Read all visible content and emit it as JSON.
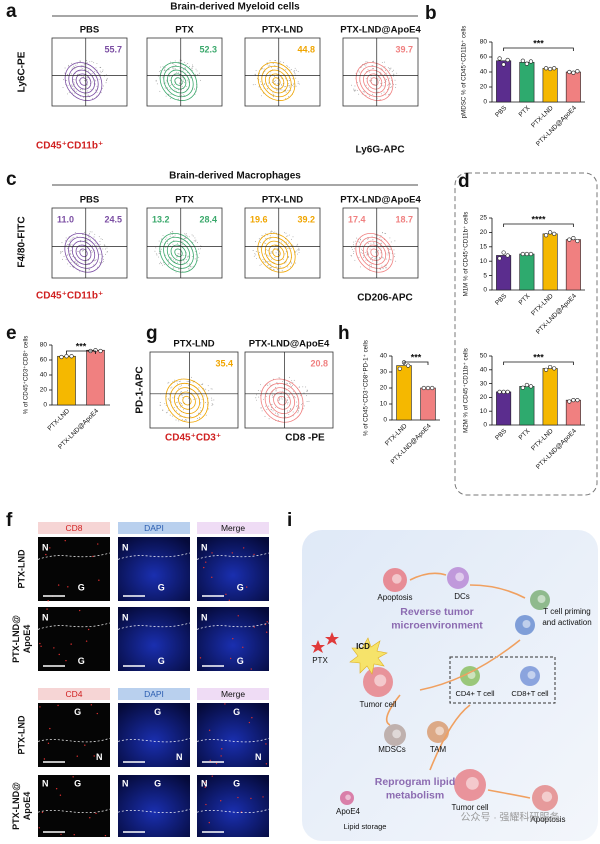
{
  "panel_a": {
    "label": "a",
    "title": "Brain-derived Myeloid cells",
    "y_axis": "Ly6C-PE",
    "gate": "CD45⁺CD11b⁺",
    "x_axis": "Ly6G-APC",
    "groups": [
      {
        "name": "PBS",
        "color": "#7b4ea3",
        "values": [
          "55.7"
        ]
      },
      {
        "name": "PTX",
        "color": "#3aa86b",
        "values": [
          "52.3"
        ]
      },
      {
        "name": "PTX-LND",
        "color": "#f0a500",
        "values": [
          "44.8"
        ]
      },
      {
        "name": "PTX-LND@ApoE4",
        "color": "#f08080",
        "values": [
          "39.7"
        ]
      }
    ]
  },
  "panel_c": {
    "label": "c",
    "title": "Brain-derived Macrophages",
    "y_axis": "F4/80-FITC",
    "gate": "CD45⁺CD11b⁺",
    "x_axis": "CD206-APC",
    "groups": [
      {
        "name": "PBS",
        "color": "#7b4ea3",
        "values": [
          "11.0",
          "24.5"
        ]
      },
      {
        "name": "PTX",
        "color": "#3aa86b",
        "values": [
          "13.2",
          "28.4"
        ]
      },
      {
        "name": "PTX-LND",
        "color": "#f0a500",
        "values": [
          "19.6",
          "39.2"
        ]
      },
      {
        "name": "PTX-LND@ApoE4",
        "color": "#f08080",
        "values": [
          "17.4",
          "18.7"
        ]
      }
    ]
  },
  "panel_g": {
    "label": "g",
    "y_axis": "PD-1-APC",
    "gate": "CD45⁺CD3⁺",
    "x_axis": "CD8 -PE",
    "groups": [
      {
        "name": "PTX-LND",
        "color": "#f0a500",
        "values": [
          "35.4"
        ]
      },
      {
        "name": "PTX-LND@ApoE4",
        "color": "#f08080",
        "values": [
          "20.8"
        ]
      }
    ]
  },
  "chart_data": [
    {
      "type": "bar",
      "label": "b",
      "y_label": "pMDSC % of CD45⁺CD11b⁺ cells",
      "categories": [
        "PBS",
        "PTX",
        "PTX-LND",
        "PTX-LND@ApoE4"
      ],
      "values": [
        55,
        53,
        45,
        40
      ],
      "points": [
        [
          58,
          50,
          56
        ],
        [
          55,
          51,
          54
        ],
        [
          45,
          44,
          45
        ],
        [
          40,
          39,
          41
        ]
      ],
      "colors": [
        "#5b2d8e",
        "#2eaa6e",
        "#f5b800",
        "#f08080"
      ],
      "ylim": [
        0,
        80
      ],
      "yticks": [
        0,
        20,
        40,
        60,
        80
      ],
      "significance": "***"
    },
    {
      "type": "bar",
      "label": "d",
      "y_label": "M1M % of CD45⁺CD11b⁺ cells",
      "categories": [
        "PBS",
        "PTX",
        "PTX-LND",
        "PTX-LND@ApoE4"
      ],
      "values": [
        12,
        12.5,
        19.5,
        17.5
      ],
      "points": [
        [
          11,
          13,
          12
        ],
        [
          12.5,
          12.5,
          12.5
        ],
        [
          19,
          20,
          19.5
        ],
        [
          17.5,
          18,
          17
        ]
      ],
      "colors": [
        "#5b2d8e",
        "#2eaa6e",
        "#f5b800",
        "#f08080"
      ],
      "ylim": [
        0,
        25
      ],
      "yticks": [
        0,
        5,
        10,
        15,
        20,
        25
      ],
      "significance": "****"
    },
    {
      "type": "bar",
      "y_label": "M2M % of CD45⁺CD11b⁺ cells",
      "categories": [
        "PBS",
        "PTX",
        "PTX-LND",
        "PTX-LND@ApoE4"
      ],
      "values": [
        24,
        28,
        41,
        18
      ],
      "points": [
        [
          24,
          24,
          24
        ],
        [
          27,
          29,
          28
        ],
        [
          40,
          42,
          41
        ],
        [
          17,
          18,
          18
        ]
      ],
      "colors": [
        "#5b2d8e",
        "#2eaa6e",
        "#f5b800",
        "#f08080"
      ],
      "ylim": [
        0,
        50
      ],
      "yticks": [
        0,
        10,
        20,
        30,
        40,
        50
      ],
      "significance": "***"
    },
    {
      "type": "bar",
      "label": "e",
      "y_label": "% of CD45⁺CD3⁺CD8⁺ cells",
      "categories": [
        "PTX-LND",
        "PTX-LND@ApoE4"
      ],
      "values": [
        65,
        73
      ],
      "points": [
        [
          64,
          65,
          65
        ],
        [
          72,
          73,
          72
        ]
      ],
      "colors": [
        "#f5b800",
        "#f08080"
      ],
      "ylim": [
        0,
        80
      ],
      "yticks": [
        0,
        20,
        40,
        60,
        80
      ],
      "significance": "***"
    },
    {
      "type": "bar",
      "label": "h",
      "y_label": "% of CD45⁺CD3⁺CD8⁺PD-1⁺ cells",
      "categories": [
        "PTX-LND",
        "PTX-LND@ApoE4"
      ],
      "values": [
        34,
        20
      ],
      "points": [
        [
          32,
          36,
          34
        ],
        [
          20,
          20,
          20
        ]
      ],
      "colors": [
        "#f5b800",
        "#f08080"
      ],
      "ylim": [
        0,
        40
      ],
      "yticks": [
        0,
        10,
        20,
        30,
        40
      ],
      "significance": "***"
    }
  ],
  "panel_f": {
    "label": "f",
    "blocks": [
      {
        "channels": [
          "CD8",
          "DAPI",
          "Merge"
        ],
        "rows": [
          {
            "name": [
              "PTX-LND"
            ],
            "regions": [
              "N",
              "G"
            ]
          },
          {
            "name": [
              "PTX-LND@",
              "ApoE4"
            ],
            "regions": [
              "N",
              "G"
            ]
          }
        ]
      },
      {
        "channels": [
          "CD4",
          "DAPI",
          "Merge"
        ],
        "rows": [
          {
            "name": [
              "PTX-LND"
            ],
            "regions": [
              "G",
              "N"
            ]
          },
          {
            "name": [
              "PTX-LND@",
              "ApoE4"
            ],
            "regions": [
              "N",
              "G"
            ]
          }
        ]
      }
    ]
  },
  "panel_i": {
    "label": "i",
    "apoptosis_top": "Apoptosis",
    "dcs": "DCs",
    "t_cell_priming": [
      "T cell priming",
      "and activation"
    ],
    "reverse": [
      "Reverse tumor",
      "microenvironment"
    ],
    "icd": "ICD",
    "ptx": "PTX",
    "tumor_cell_top": "Tumor cell",
    "cd4": "CD4+ T cell",
    "cd8": "CD8+T cell",
    "mdscs": "MDSCs",
    "tam": "TAM",
    "reprogram": [
      "Reprogram lipid",
      "metabolism"
    ],
    "apoe4": "ApoE4",
    "tumor_cell_bottom": "Tumor cell",
    "apoptosis_bottom": "Apoptosis",
    "lipid_storage": "Lipid storage",
    "watermark": "公众号 · 强耀科研服务"
  }
}
